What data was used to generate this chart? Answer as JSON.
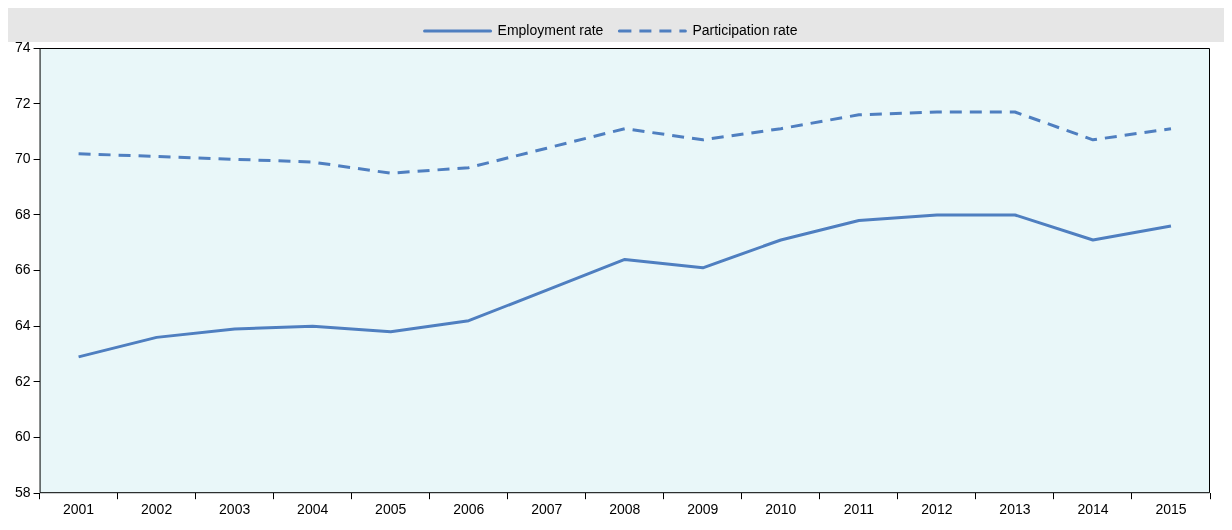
{
  "chart_data": {
    "type": "line",
    "categories": [
      "2001",
      "2002",
      "2003",
      "2004",
      "2005",
      "2006",
      "2007",
      "2008",
      "2009",
      "2010",
      "2011",
      "2012",
      "2013",
      "2014",
      "2015"
    ],
    "series": [
      {
        "name": "Employment rate",
        "color": "#4f7fc0",
        "line_style": "solid",
        "values": [
          62.9,
          63.6,
          63.9,
          64.0,
          63.8,
          64.2,
          65.3,
          66.4,
          66.1,
          67.1,
          67.8,
          68.0,
          68.0,
          67.1,
          67.6
        ]
      },
      {
        "name": "Participation rate",
        "color": "#4f7fc0",
        "line_style": "dashed",
        "values": [
          70.2,
          70.1,
          70.0,
          69.9,
          69.5,
          69.7,
          70.4,
          71.1,
          70.7,
          71.1,
          71.6,
          71.7,
          71.7,
          70.7,
          71.1
        ]
      }
    ],
    "ylim": [
      58,
      74
    ],
    "yticks": [
      58,
      60,
      62,
      64,
      66,
      68,
      70,
      72,
      74
    ],
    "grid": false,
    "legend": "top",
    "marker": "none"
  }
}
